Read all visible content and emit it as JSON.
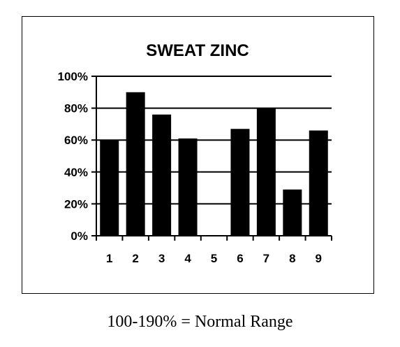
{
  "chart_data": {
    "type": "bar",
    "title": "SWEAT ZINC",
    "categories": [
      "1",
      "2",
      "3",
      "4",
      "5",
      "6",
      "7",
      "8",
      "9"
    ],
    "values": [
      60,
      90,
      76,
      61,
      0,
      67,
      80,
      29,
      66
    ],
    "ylim": [
      0,
      100
    ],
    "yticks": [
      0,
      20,
      40,
      60,
      80,
      100
    ],
    "ytick_labels": [
      "0%",
      "20%",
      "40%",
      "60%",
      "80%",
      "100%"
    ],
    "xlabel": "",
    "ylabel": "",
    "grid": true,
    "bar_color": "#000000"
  },
  "footnote": "100-190% = Normal Range"
}
